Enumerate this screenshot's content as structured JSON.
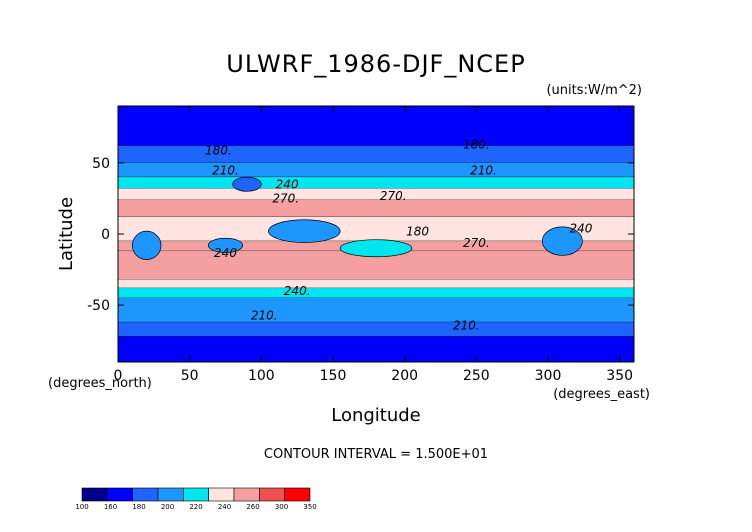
{
  "chart_data": {
    "type": "contour-map",
    "title": "ULWRF_1986-DJF_NCEP",
    "units": "(units:W/m^2)",
    "xlabel": "Longitude",
    "ylabel": "Latitude",
    "x_unit_label": "(degrees_east)",
    "y_unit_label": "(degrees_north)",
    "xlim": [
      0,
      360
    ],
    "ylim": [
      -90,
      90
    ],
    "xticks": [
      0,
      50,
      100,
      150,
      200,
      250,
      300,
      350
    ],
    "yticks": [
      -50,
      0,
      50
    ],
    "contour_interval_text": "CONTOUR INTERVAL = 1.500E+01",
    "colorbar": {
      "levels": [
        100,
        160,
        180,
        200,
        220,
        240,
        260,
        300,
        350
      ],
      "colors": [
        "#00008b",
        "#0000ff",
        "#1e64ff",
        "#1e96ff",
        "#00e5ee",
        "#ffe4e1",
        "#f4a0a0",
        "#f05050",
        "#ff0000"
      ]
    },
    "zonal_bands": [
      {
        "lat_from": 90,
        "lat_to": 62,
        "value": 160
      },
      {
        "lat_from": 62,
        "lat_to": 50,
        "value": 185
      },
      {
        "lat_from": 50,
        "lat_to": 40,
        "value": 205
      },
      {
        "lat_from": 40,
        "lat_to": 32,
        "value": 225
      },
      {
        "lat_from": 32,
        "lat_to": 24,
        "value": 250
      },
      {
        "lat_from": 24,
        "lat_to": 12,
        "value": 275
      },
      {
        "lat_from": 12,
        "lat_to": -5,
        "value": 250
      },
      {
        "lat_from": -5,
        "lat_to": -12,
        "value": 260
      },
      {
        "lat_from": -12,
        "lat_to": -32,
        "value": 275
      },
      {
        "lat_from": -32,
        "lat_to": -38,
        "value": 250
      },
      {
        "lat_from": -38,
        "lat_to": -45,
        "value": 230
      },
      {
        "lat_from": -45,
        "lat_to": -62,
        "value": 205
      },
      {
        "lat_from": -62,
        "lat_to": -72,
        "value": 185
      },
      {
        "lat_from": -72,
        "lat_to": -90,
        "value": 170
      }
    ],
    "regions": [
      {
        "name": "south-america-convection",
        "lon": 310,
        "lat": -5,
        "rlon": 14,
        "rlat": 10,
        "value": 200
      },
      {
        "name": "africa-convection",
        "lon": 20,
        "lat": -8,
        "rlon": 10,
        "rlat": 10,
        "value": 200
      },
      {
        "name": "maritime-continent",
        "lon": 130,
        "lat": 2,
        "rlon": 25,
        "rlat": 8,
        "value": 215
      },
      {
        "name": "indian-ocean-convection",
        "lon": 75,
        "lat": -8,
        "rlon": 12,
        "rlat": 5,
        "value": 210
      },
      {
        "name": "spcz",
        "lon": 180,
        "lat": -10,
        "rlon": 25,
        "rlat": 6,
        "value": 230
      },
      {
        "name": "tibet-cold",
        "lon": 90,
        "lat": 35,
        "rlon": 10,
        "rlat": 5,
        "value": 195
      }
    ],
    "contour_labels": [
      {
        "text": "180.",
        "lon": 70,
        "lat": 56
      },
      {
        "text": "180.",
        "lon": 250,
        "lat": 60
      },
      {
        "text": "210.",
        "lon": 75,
        "lat": 42
      },
      {
        "text": "210.",
        "lon": 255,
        "lat": 42
      },
      {
        "text": "240",
        "lon": 118,
        "lat": 32
      },
      {
        "text": "270.",
        "lon": 117,
        "lat": 22
      },
      {
        "text": "270.",
        "lon": 192,
        "lat": 24
      },
      {
        "text": "270.",
        "lon": 250,
        "lat": -9
      },
      {
        "text": "240",
        "lon": 75,
        "lat": -16
      },
      {
        "text": "240",
        "lon": 323,
        "lat": 1
      },
      {
        "text": "240.",
        "lon": 125,
        "lat": -43
      },
      {
        "text": "210.",
        "lon": 102,
        "lat": -60
      },
      {
        "text": "210.",
        "lon": 243,
        "lat": -67
      },
      {
        "text": "180",
        "lon": 209,
        "lat": -1
      }
    ]
  }
}
